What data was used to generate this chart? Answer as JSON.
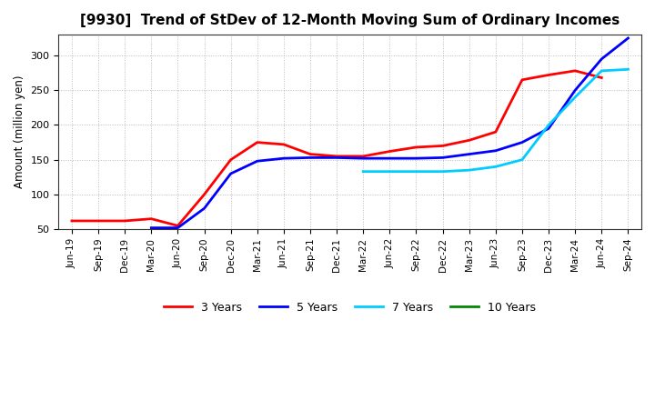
{
  "title": "[9930]  Trend of StDev of 12-Month Moving Sum of Ordinary Incomes",
  "ylabel": "Amount (million yen)",
  "background_color": "#ffffff",
  "grid_color": "#aaaaaa",
  "ylim": [
    50,
    330
  ],
  "yticks": [
    50,
    100,
    150,
    200,
    250,
    300
  ],
  "x_labels": [
    "Jun-19",
    "Sep-19",
    "Dec-19",
    "Mar-20",
    "Jun-20",
    "Sep-20",
    "Dec-20",
    "Mar-21",
    "Jun-21",
    "Sep-21",
    "Dec-21",
    "Mar-22",
    "Jun-22",
    "Sep-22",
    "Dec-22",
    "Mar-23",
    "Jun-23",
    "Sep-23",
    "Dec-23",
    "Mar-24",
    "Jun-24",
    "Sep-24"
  ],
  "series": [
    {
      "name": "3 Years",
      "color": "#ff0000",
      "data_x": [
        0,
        1,
        2,
        3,
        4,
        5,
        6,
        7,
        8,
        9,
        10,
        11,
        12,
        13,
        14,
        15,
        16,
        17,
        18,
        19,
        20
      ],
      "data_y": [
        62,
        62,
        62,
        65,
        55,
        100,
        150,
        175,
        172,
        158,
        155,
        155,
        162,
        168,
        170,
        178,
        190,
        265,
        272,
        278,
        268
      ]
    },
    {
      "name": "5 Years",
      "color": "#0000ff",
      "data_x": [
        3,
        4,
        5,
        6,
        7,
        8,
        9,
        10,
        11,
        12,
        13,
        14,
        15,
        16,
        17,
        18,
        19,
        20,
        21
      ],
      "data_y": [
        52,
        52,
        80,
        130,
        148,
        152,
        153,
        153,
        152,
        152,
        152,
        153,
        158,
        163,
        175,
        195,
        250,
        295,
        325
      ]
    },
    {
      "name": "7 Years",
      "color": "#00ccff",
      "data_x": [
        11,
        12,
        13,
        14,
        15,
        16,
        17,
        18,
        19,
        20,
        21
      ],
      "data_y": [
        133,
        133,
        133,
        133,
        135,
        140,
        150,
        200,
        240,
        278,
        280
      ]
    },
    {
      "name": "10 Years",
      "color": "#008800",
      "data_x": [],
      "data_y": []
    }
  ]
}
